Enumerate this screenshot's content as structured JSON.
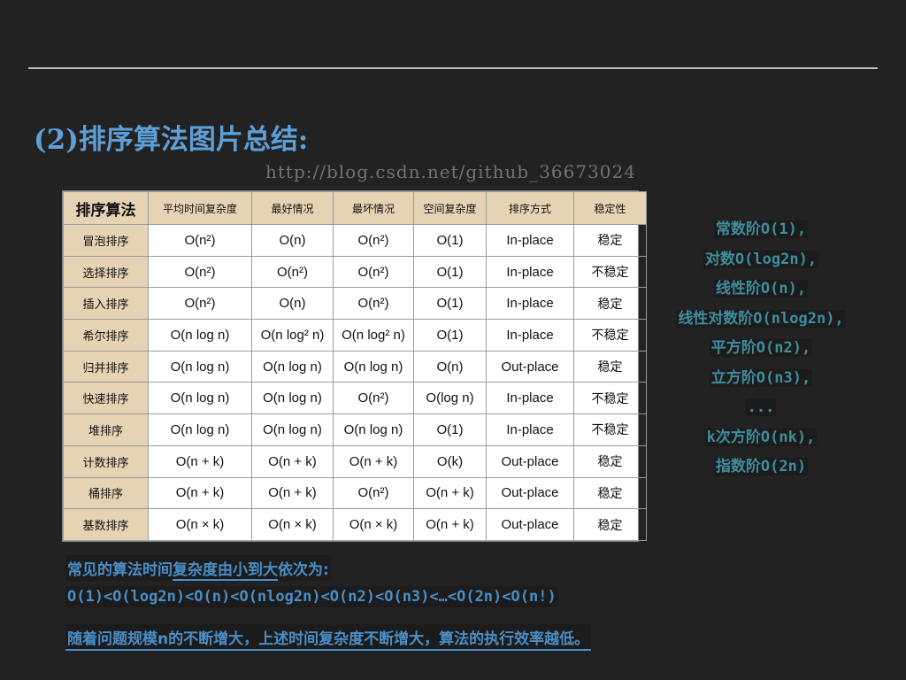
{
  "title": "(2)排序算法图片总结:",
  "table": {
    "headers": [
      "排序算法",
      "平均时间复杂度",
      "最好情况",
      "最坏情况",
      "空间复杂度",
      "排序方式",
      "稳定性"
    ],
    "rows": [
      [
        "冒泡排序",
        "O(n²)",
        "O(n)",
        "O(n²)",
        "O(1)",
        "In-place",
        "稳定"
      ],
      [
        "选择排序",
        "O(n²)",
        "O(n²)",
        "O(n²)",
        "O(1)",
        "In-place",
        "不稳定"
      ],
      [
        "插入排序",
        "O(n²)",
        "O(n)",
        "O(n²)",
        "O(1)",
        "In-place",
        "稳定"
      ],
      [
        "希尔排序",
        "O(n log n)",
        "O(n log² n)",
        "O(n log² n)",
        "O(1)",
        "In-place",
        "不稳定"
      ],
      [
        "归并排序",
        "O(n log n)",
        "O(n log n)",
        "O(n log n)",
        "O(n)",
        "Out-place",
        "稳定"
      ],
      [
        "快速排序",
        "O(n log n)",
        "O(n log n)",
        "O(n²)",
        "O(log n)",
        "In-place",
        "不稳定"
      ],
      [
        "堆排序",
        "O(n log n)",
        "O(n log n)",
        "O(n log n)",
        "O(1)",
        "In-place",
        "不稳定"
      ],
      [
        "计数排序",
        "O(n + k)",
        "O(n + k)",
        "O(n + k)",
        "O(k)",
        "Out-place",
        "稳定"
      ],
      [
        "桶排序",
        "O(n + k)",
        "O(n + k)",
        "O(n²)",
        "O(n + k)",
        "Out-place",
        "稳定"
      ],
      [
        "基数排序",
        "O(n × k)",
        "O(n × k)",
        "O(n × k)",
        "O(n + k)",
        "Out-place",
        "稳定"
      ]
    ],
    "watermark": "http://blog.csdn.net/github_36673024"
  },
  "orders": [
    "常数阶O(1),",
    "对数O(log2n),",
    "线性阶O(n),",
    "线性对数阶O(nlog2n),",
    "平方阶O(n2),",
    "立方阶O(n3),",
    "...",
    "k次方阶O(nk),",
    "指数阶O(2n)"
  ],
  "notes": {
    "line1_a": "常见的算法时间",
    "line1_b": "复杂度由小到大",
    "line1_c": "依次为:",
    "line2": "O(1)<O(log2n)<O(n)<O(nlog2n)<O(n2)<O(n3)<…<O(2n)<O(n!)",
    "line3": "随着问题规模n的不断增大，上述时间复杂度不断增大，算法的执行效率越低。"
  },
  "colors": {
    "title": "#5d9fd6",
    "orders": "#3f8d9c",
    "notes": "#4a8ec6",
    "header_bg": "#e6d3b3",
    "background": "#222222"
  }
}
